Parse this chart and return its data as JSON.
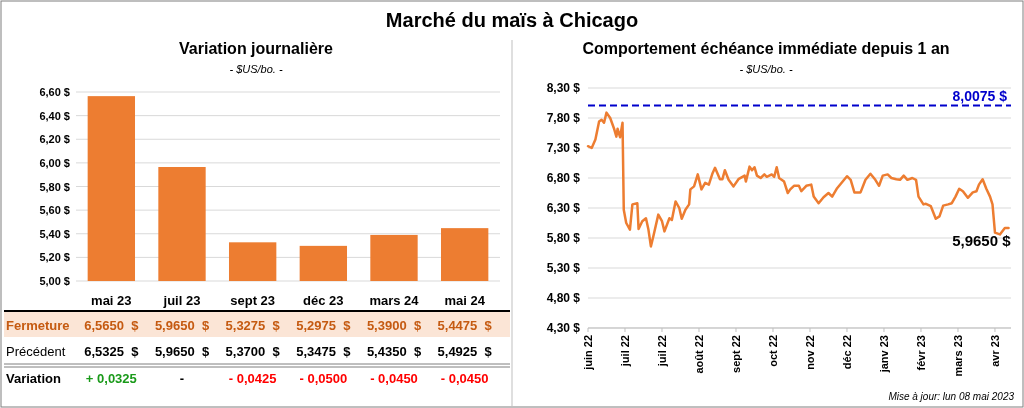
{
  "chart_data": [
    {
      "type": "other",
      "title": "Marché du maïs à Chicago"
    },
    {
      "type": "bar",
      "title": "Variation journalière",
      "subtitle": "- $US/bo. -",
      "categories": [
        "mai 23",
        "juil 23",
        "sept 23",
        "déc 23",
        "mars 24",
        "mai 24"
      ],
      "series": [
        {
          "name": "Fermeture",
          "color": "#ed7d31",
          "values": [
            6.565,
            5.965,
            5.3275,
            5.2975,
            5.39,
            5.4475
          ],
          "value_labels": [
            "6,5650  $",
            "5,9650  $",
            "5,3275  $",
            "5,2975  $",
            "5,3900  $",
            "5,4475  $"
          ]
        }
      ],
      "ylim": [
        5,
        6.6
      ],
      "yticks": [
        {
          "value": 5,
          "label": "5,00 $"
        },
        {
          "value": 5.2,
          "label": "5,20 $"
        },
        {
          "value": 5.4,
          "label": "5,40 $"
        },
        {
          "value": 5.6,
          "label": "5,60 $"
        },
        {
          "value": 5.8,
          "label": "5,80 $"
        },
        {
          "value": 6,
          "label": "6,00 $"
        },
        {
          "value": 6.2,
          "label": "6,20 $"
        },
        {
          "value": 6.4,
          "label": "6,40 $"
        },
        {
          "value": 6.6,
          "label": "6,60 $"
        }
      ],
      "grid": "y"
    },
    {
      "type": "other",
      "annotations": [
        "Précédent",
        "6,5325  $",
        "5,9650  $",
        "5,3700  $",
        "5,3475  $",
        "5,4350  $",
        "5,4925  $",
        "Variation",
        "+ 0,0325",
        "-",
        "- 0,0425",
        "- 0,0500",
        "- 0,0450",
        "- 0,0450"
      ],
      "colors": [
        "#000000",
        "#000000",
        "#000000",
        "#000000",
        "#000000",
        "#000000",
        "#000000",
        "#000000",
        "#1a9a1a",
        "#000000",
        "#ff0000",
        "#ff0000",
        "#ff0000",
        "#ff0000"
      ]
    },
    {
      "type": "line",
      "title": "Comportement échéance immédiate depuis 1 an",
      "subtitle": "- $US/bo. -",
      "color": "#ed7d31",
      "x": [
        "2022-06-01",
        "2022-06-04",
        "2022-06-07",
        "2022-06-10",
        "2022-06-12",
        "2022-06-14",
        "2022-06-16",
        "2022-06-19",
        "2022-06-22",
        "2022-06-24",
        "2022-06-25",
        "2022-06-27",
        "2022-06-29",
        "2022-06-30",
        "2022-07-02",
        "2022-07-05",
        "2022-07-07",
        "2022-07-11",
        "2022-07-12",
        "2022-07-15",
        "2022-07-18",
        "2022-07-20",
        "2022-07-22",
        "2022-07-24",
        "2022-07-28",
        "2022-07-31",
        "2022-08-02",
        "2022-08-06",
        "2022-08-08",
        "2022-08-11",
        "2022-08-14",
        "2022-08-16",
        "2022-08-19",
        "2022-08-22",
        "2022-08-23",
        "2022-08-26",
        "2022-08-29",
        "2022-09-01",
        "2022-09-04",
        "2022-09-07",
        "2022-09-10",
        "2022-09-12",
        "2022-09-16",
        "2022-09-18",
        "2022-09-20",
        "2022-09-23",
        "2022-09-27",
        "2022-10-01",
        "2022-10-06",
        "2022-10-07",
        "2022-10-10",
        "2022-10-12",
        "2022-10-14",
        "2022-10-16",
        "2022-10-19",
        "2022-10-22",
        "2022-10-24",
        "2022-10-28",
        "2022-10-30",
        "2022-11-01",
        "2022-11-03",
        "2022-11-07",
        "2022-11-10",
        "2022-11-12",
        "2022-11-15",
        "2022-11-19",
        "2022-11-21",
        "2022-11-25",
        "2022-11-29",
        "2022-12-01",
        "2022-12-05",
        "2022-12-09",
        "2022-12-13",
        "2022-12-16",
        "2022-12-20",
        "2022-12-24",
        "2022-12-28",
        "2022-12-31",
        "2023-01-03",
        "2023-01-08",
        "2023-01-12",
        "2023-01-16",
        "2023-01-20",
        "2023-01-23",
        "2023-01-26",
        "2023-01-30",
        "2023-02-02",
        "2023-02-06",
        "2023-02-09",
        "2023-02-12",
        "2023-02-15",
        "2023-02-19",
        "2023-02-22",
        "2023-02-24",
        "2023-02-28",
        "2023-03-02",
        "2023-03-06",
        "2023-03-10",
        "2023-03-13",
        "2023-03-16",
        "2023-03-20",
        "2023-03-23",
        "2023-03-26",
        "2023-03-29",
        "2023-04-01",
        "2023-04-05",
        "2023-04-09",
        "2023-04-12",
        "2023-04-14",
        "2023-04-17",
        "2023-04-20",
        "2023-04-23",
        "2023-04-25",
        "2023-04-27",
        "2023-05-01",
        "2023-05-05",
        "2023-05-08"
      ],
      "values": [
        7.33,
        7.3,
        7.44,
        7.74,
        7.77,
        7.72,
        7.89,
        7.8,
        7.63,
        7.49,
        7.62,
        7.48,
        7.72,
        6.27,
        6.05,
        5.94,
        6.36,
        6.38,
        5.95,
        6.08,
        6.13,
        5.94,
        5.66,
        5.83,
        6.19,
        6.08,
        5.91,
        6.13,
        6.1,
        6.41,
        6.3,
        6.12,
        6.27,
        6.36,
        6.61,
        6.66,
        6.86,
        6.61,
        6.72,
        6.69,
        6.88,
        6.97,
        6.78,
        6.78,
        6.93,
        6.77,
        6.66,
        6.78,
        6.84,
        6.74,
        6.99,
        6.93,
        6.98,
        6.84,
        6.8,
        6.86,
        6.82,
        6.86,
        6.82,
        6.98,
        6.8,
        6.74,
        6.55,
        6.61,
        6.67,
        6.67,
        6.58,
        6.67,
        6.69,
        6.49,
        6.38,
        6.48,
        6.55,
        6.49,
        6.63,
        6.73,
        6.83,
        6.77,
        6.56,
        6.56,
        6.77,
        6.87,
        6.77,
        6.67,
        6.84,
        6.86,
        6.8,
        6.78,
        6.77,
        6.84,
        6.77,
        6.8,
        6.77,
        6.49,
        6.36,
        6.37,
        6.33,
        6.12,
        6.16,
        6.34,
        6.36,
        6.38,
        6.49,
        6.62,
        6.58,
        6.47,
        6.56,
        6.58,
        6.69,
        6.78,
        6.62,
        6.49,
        6.36,
        5.89,
        5.86,
        5.965,
        5.965
      ],
      "xlim": [
        "2022-06-01",
        "2023-05-10"
      ],
      "xticks": [
        {
          "value": "2022-06-01",
          "label": "juin 22"
        },
        {
          "value": "2022-07-01",
          "label": "juil 22"
        },
        {
          "value": "2022-07-31",
          "label": "juil 22"
        },
        {
          "value": "2022-08-30",
          "label": "août 22"
        },
        {
          "value": "2022-09-29",
          "label": "sept 22"
        },
        {
          "value": "2022-10-29",
          "label": "oct 22"
        },
        {
          "value": "2022-11-28",
          "label": "nov 22"
        },
        {
          "value": "2022-12-28",
          "label": "déc 22"
        },
        {
          "value": "2023-01-27",
          "label": "janv 23"
        },
        {
          "value": "2023-02-26",
          "label": "févr 23"
        },
        {
          "value": "2023-03-28",
          "label": "mars 23"
        },
        {
          "value": "2023-04-27",
          "label": "avr 23"
        }
      ],
      "ylim": [
        4.3,
        8.3
      ],
      "yticks": [
        {
          "value": 4.3,
          "label": "4,30 $"
        },
        {
          "value": 4.8,
          "label": "4,80 $"
        },
        {
          "value": 5.3,
          "label": "5,30 $"
        },
        {
          "value": 5.8,
          "label": "5,80 $"
        },
        {
          "value": 6.3,
          "label": "6,30 $"
        },
        {
          "value": 6.8,
          "label": "6,80 $"
        },
        {
          "value": 7.3,
          "label": "7,30 $"
        },
        {
          "value": 7.8,
          "label": "7,80 $"
        },
        {
          "value": 8.3,
          "label": "8,30 $"
        }
      ],
      "ref_lines": [
        {
          "axis": "y",
          "value": 8.0075,
          "label": "8,0075 $",
          "color": "#0000cc",
          "line_style": "dashed"
        }
      ],
      "annotations": [
        {
          "text": "5,9650 $",
          "x": "2023-05-08",
          "y": 5.965
        },
        "Mise à jour: lun 08 mai 2023"
      ],
      "grid": "y",
      "line_style": "solid",
      "marker": "none"
    }
  ]
}
